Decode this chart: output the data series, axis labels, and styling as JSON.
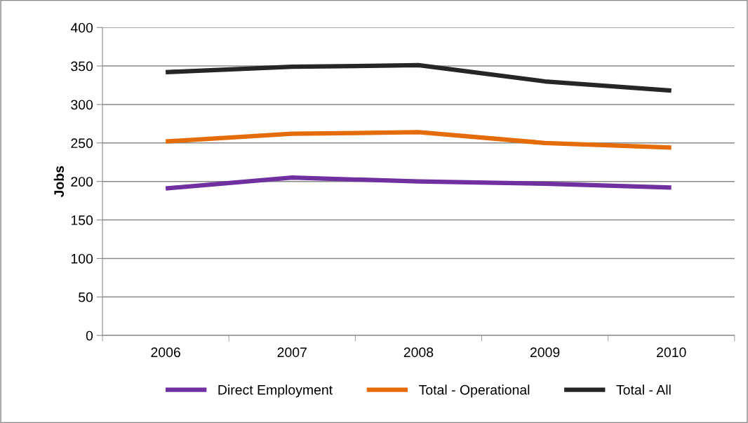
{
  "chart_data": {
    "type": "line",
    "ylabel": "Jobs",
    "categories": [
      "2006",
      "2007",
      "2008",
      "2009",
      "2010"
    ],
    "series": [
      {
        "name": "Direct Employment",
        "color": "#7030a0",
        "values": [
          191,
          205,
          200,
          197,
          192
        ]
      },
      {
        "name": "Total - Operational",
        "color": "#e46c0a",
        "values": [
          252,
          262,
          264,
          250,
          244
        ]
      },
      {
        "name": "Total - All",
        "color": "#262626",
        "values": [
          342,
          349,
          351,
          330,
          318
        ]
      }
    ],
    "ylim": [
      0,
      400
    ],
    "yticks": [
      0,
      50,
      100,
      150,
      200,
      250,
      300,
      350,
      400
    ],
    "grid": "y",
    "legend": "bottom",
    "marker": "none",
    "line_style": "solid"
  }
}
